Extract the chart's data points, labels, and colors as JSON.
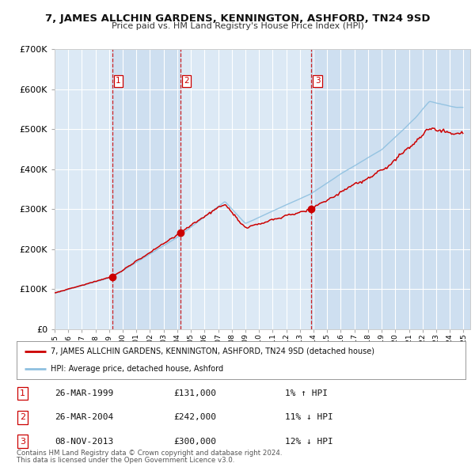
{
  "title": "7, JAMES ALLCHIN GARDENS, KENNINGTON, ASHFORD, TN24 9SD",
  "subtitle": "Price paid vs. HM Land Registry's House Price Index (HPI)",
  "legend_label_red": "7, JAMES ALLCHIN GARDENS, KENNINGTON, ASHFORD, TN24 9SD (detached house)",
  "legend_label_blue": "HPI: Average price, detached house, Ashford",
  "sale_dates": [
    1999.23,
    2004.23,
    2013.85
  ],
  "sale_prices": [
    131000,
    242000,
    300000
  ],
  "sale_labels": [
    "1",
    "2",
    "3"
  ],
  "vline_dates": [
    1999.23,
    2004.23,
    2013.85
  ],
  "table_rows": [
    [
      "1",
      "26-MAR-1999",
      "£131,000",
      "1% ↑ HPI"
    ],
    [
      "2",
      "26-MAR-2004",
      "£242,000",
      "11% ↓ HPI"
    ],
    [
      "3",
      "08-NOV-2013",
      "£300,000",
      "12% ↓ HPI"
    ]
  ],
  "footnote1": "Contains HM Land Registry data © Crown copyright and database right 2024.",
  "footnote2": "This data is licensed under the Open Government Licence v3.0.",
  "ylim": [
    0,
    700000
  ],
  "yticks": [
    0,
    100000,
    200000,
    300000,
    400000,
    500000,
    600000,
    700000
  ],
  "xlim_start": 1995.0,
  "xlim_end": 2025.5,
  "background_color": "#dce9f5",
  "grid_color": "#ffffff",
  "red_color": "#cc0000",
  "blue_color": "#8ec0e0"
}
